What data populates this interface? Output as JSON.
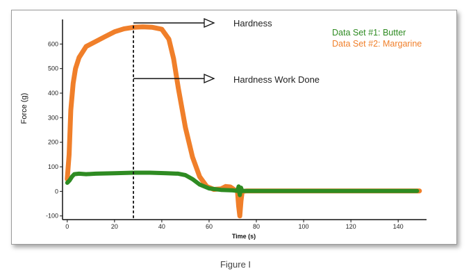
{
  "caption": "Figure I",
  "chart_data": {
    "type": "line",
    "xlabel": "Time (s)",
    "ylabel": "Force (g)",
    "xlim": [
      -2,
      152
    ],
    "ylim": [
      -115,
      700
    ],
    "x_ticks": [
      0,
      20,
      40,
      60,
      80,
      100,
      120,
      140
    ],
    "y_ticks": [
      -100,
      0,
      100,
      200,
      300,
      400,
      500,
      600
    ],
    "grid": false,
    "legend_position": "top-right",
    "series": [
      {
        "name": "Data Set #1: Butter",
        "color": "#2e8b22",
        "x": [
          0,
          1,
          2,
          3,
          5,
          8,
          12,
          20,
          28,
          35,
          42,
          47,
          50,
          53,
          56,
          60,
          65,
          70,
          72,
          72.5,
          73,
          73.5,
          74,
          80,
          100,
          120,
          148
        ],
        "y": [
          35,
          45,
          60,
          70,
          72,
          70,
          72,
          74,
          76,
          76,
          74,
          72,
          66,
          50,
          28,
          12,
          6,
          4,
          2,
          20,
          -15,
          15,
          2,
          2,
          2,
          2,
          2
        ]
      },
      {
        "name": "Data Set #2: Margarine",
        "color": "#f07f2a",
        "x": [
          0,
          0.8,
          1.5,
          2.5,
          3.5,
          5,
          8,
          12,
          16,
          20,
          24,
          28,
          32,
          36,
          40,
          43,
          45,
          47,
          50,
          53,
          56,
          59,
          62,
          65,
          67,
          69,
          71,
          72,
          72.5,
          73,
          73.5,
          74,
          76,
          80,
          100,
          120,
          140,
          149
        ],
        "y": [
          50,
          150,
          330,
          440,
          500,
          545,
          590,
          610,
          630,
          650,
          662,
          668,
          670,
          668,
          660,
          620,
          540,
          420,
          260,
          140,
          60,
          20,
          8,
          10,
          20,
          18,
          5,
          2,
          -60,
          -100,
          -40,
          0,
          2,
          2,
          2,
          2,
          2,
          2
        ]
      }
    ],
    "annotations": [
      {
        "text": "Hardness",
        "at": [
          28,
          675
        ]
      },
      {
        "text": "Hardness Work Done",
        "at": [
          28,
          450
        ]
      }
    ],
    "vline_x": 28
  }
}
